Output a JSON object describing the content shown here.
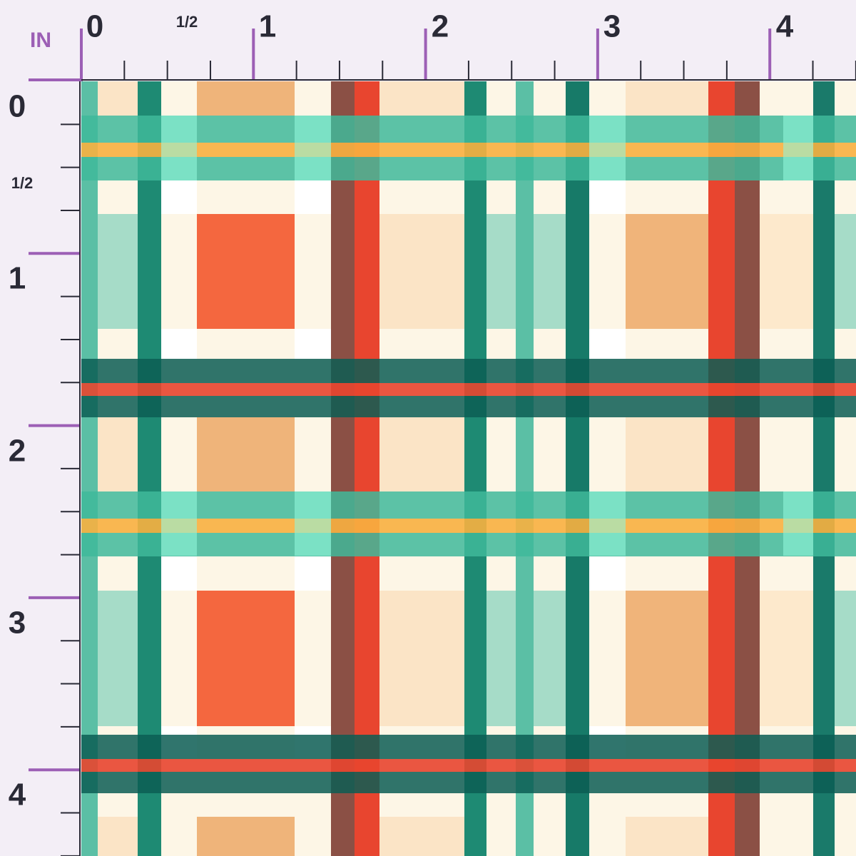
{
  "unit_label": "IN",
  "top_ruler": {
    "labels": [
      "0",
      "1/2",
      "1",
      "2",
      "3",
      "4"
    ]
  },
  "left_ruler": {
    "labels": [
      "0",
      "1/2",
      "1",
      "2",
      "3",
      "4"
    ]
  }
}
